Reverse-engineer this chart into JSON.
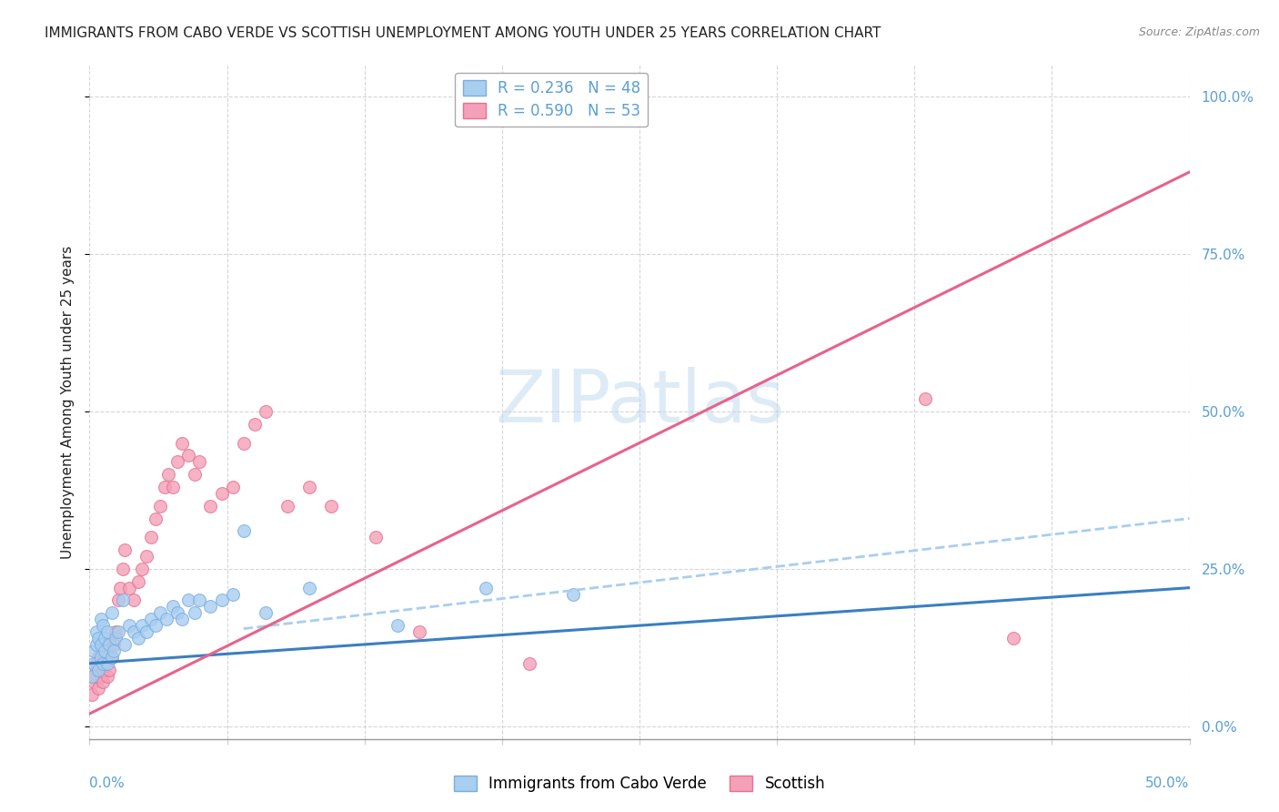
{
  "title": "IMMIGRANTS FROM CABO VERDE VS SCOTTISH UNEMPLOYMENT AMONG YOUTH UNDER 25 YEARS CORRELATION CHART",
  "source": "Source: ZipAtlas.com",
  "ylabel": "Unemployment Among Youth under 25 years",
  "ylabel_right_vals": [
    0.0,
    0.25,
    0.5,
    0.75,
    1.0
  ],
  "ylabel_right_labels": [
    "0.0%",
    "25.0%",
    "50.0%",
    "75.0%",
    "100.0%"
  ],
  "xlim": [
    0.0,
    0.5
  ],
  "ylim": [
    -0.02,
    1.05
  ],
  "legend_entry1": "R = 0.236   N = 48",
  "legend_entry2": "R = 0.590   N = 53",
  "watermark": "ZIPatlas",
  "blue_scatter_x": [
    0.001,
    0.002,
    0.002,
    0.003,
    0.003,
    0.004,
    0.004,
    0.005,
    0.005,
    0.005,
    0.006,
    0.006,
    0.007,
    0.007,
    0.008,
    0.008,
    0.009,
    0.01,
    0.01,
    0.011,
    0.012,
    0.013,
    0.015,
    0.016,
    0.018,
    0.02,
    0.022,
    0.024,
    0.026,
    0.028,
    0.03,
    0.032,
    0.035,
    0.038,
    0.04,
    0.042,
    0.045,
    0.048,
    0.05,
    0.055,
    0.06,
    0.065,
    0.07,
    0.08,
    0.1,
    0.14,
    0.18,
    0.22
  ],
  "blue_scatter_y": [
    0.08,
    0.1,
    0.12,
    0.13,
    0.15,
    0.09,
    0.14,
    0.11,
    0.13,
    0.17,
    0.1,
    0.16,
    0.12,
    0.14,
    0.1,
    0.15,
    0.13,
    0.11,
    0.18,
    0.12,
    0.14,
    0.15,
    0.2,
    0.13,
    0.16,
    0.15,
    0.14,
    0.16,
    0.15,
    0.17,
    0.16,
    0.18,
    0.17,
    0.19,
    0.18,
    0.17,
    0.2,
    0.18,
    0.2,
    0.19,
    0.2,
    0.21,
    0.31,
    0.18,
    0.22,
    0.16,
    0.22,
    0.21
  ],
  "pink_scatter_x": [
    0.001,
    0.002,
    0.002,
    0.003,
    0.003,
    0.004,
    0.004,
    0.005,
    0.005,
    0.006,
    0.006,
    0.007,
    0.007,
    0.008,
    0.008,
    0.009,
    0.01,
    0.011,
    0.012,
    0.013,
    0.014,
    0.015,
    0.016,
    0.018,
    0.02,
    0.022,
    0.024,
    0.026,
    0.028,
    0.03,
    0.032,
    0.034,
    0.036,
    0.038,
    0.04,
    0.042,
    0.045,
    0.048,
    0.05,
    0.055,
    0.06,
    0.065,
    0.07,
    0.075,
    0.08,
    0.09,
    0.1,
    0.11,
    0.13,
    0.15,
    0.2,
    0.38,
    0.42
  ],
  "pink_scatter_y": [
    0.05,
    0.07,
    0.08,
    0.09,
    0.1,
    0.06,
    0.11,
    0.08,
    0.12,
    0.07,
    0.09,
    0.1,
    0.13,
    0.08,
    0.12,
    0.09,
    0.11,
    0.13,
    0.15,
    0.2,
    0.22,
    0.25,
    0.28,
    0.22,
    0.2,
    0.23,
    0.25,
    0.27,
    0.3,
    0.33,
    0.35,
    0.38,
    0.4,
    0.38,
    0.42,
    0.45,
    0.43,
    0.4,
    0.42,
    0.35,
    0.37,
    0.38,
    0.45,
    0.48,
    0.5,
    0.35,
    0.38,
    0.35,
    0.3,
    0.15,
    0.1,
    0.52,
    0.14
  ],
  "blue_line_x": [
    0.0,
    0.5
  ],
  "blue_line_y": [
    0.1,
    0.22
  ],
  "pink_line_x": [
    0.0,
    0.5
  ],
  "pink_line_y": [
    0.02,
    0.88
  ],
  "scatter_size": 100,
  "blue_color": "#a8cef0",
  "pink_color": "#f4a0b8",
  "blue_edge": "#7aade0",
  "pink_edge": "#e87090",
  "blue_line_color": "#3a7fc1",
  "pink_line_color": "#e8628a",
  "grid_color": "#cccccc",
  "background_color": "#ffffff",
  "title_color": "#222222",
  "axis_label_color": "#5a9fd4",
  "right_axis_color": "#5a9fd4",
  "legend_box_color": "#aaaaaa"
}
